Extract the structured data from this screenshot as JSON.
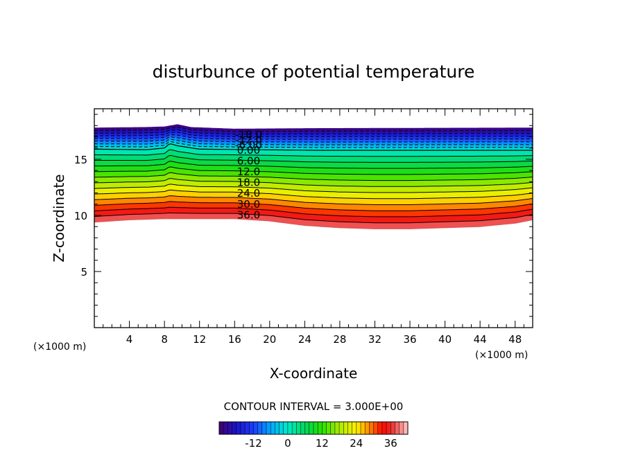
{
  "chart_data": {
    "type": "contour",
    "title": "disturbunce of potential temperature",
    "xlabel": "X-coordinate",
    "ylabel": "Z-coordinate",
    "x_unit_label": "(×1000 m)",
    "y_unit_label": "(×1000 m)",
    "xlim": [
      0,
      50
    ],
    "ylim": [
      0,
      19.5
    ],
    "x_ticks": [
      4,
      8,
      12,
      16,
      20,
      24,
      28,
      32,
      36,
      40,
      44,
      48
    ],
    "y_ticks": [
      5,
      10,
      15
    ],
    "contour_interval_label": "CONTOUR INTERVAL = 3.000E+00",
    "contour_levels": [
      -24,
      -21,
      -18,
      -15,
      -12,
      -9,
      -6,
      -3,
      0,
      3,
      6,
      9,
      12,
      15,
      18,
      21,
      24,
      27,
      30,
      33,
      36,
      39
    ],
    "contour_labels": [
      {
        "text": "-18.0",
        "level": -18
      },
      {
        "text": "-12.0",
        "level": -12
      },
      {
        "text": "-6.00",
        "level": -6
      },
      {
        "text": "0.00",
        "level": 0
      },
      {
        "text": "6.00",
        "level": 6
      },
      {
        "text": "12.0",
        "level": 12
      },
      {
        "text": "18.0",
        "level": 18
      },
      {
        "text": "24.0",
        "level": 24
      },
      {
        "text": "30.0",
        "level": 30
      },
      {
        "text": "36.0",
        "level": 36
      }
    ],
    "colorbar": {
      "min": -24,
      "max": 42,
      "ticks": [
        -12,
        0,
        12,
        24,
        36
      ],
      "tick_labels": [
        "-12",
        "0",
        "12",
        "24",
        "36"
      ]
    },
    "grid": false,
    "negative_contours": "dashed",
    "field_top_profile": [
      [
        0,
        17.8
      ],
      [
        6,
        17.85
      ],
      [
        8,
        17.9
      ],
      [
        9.5,
        18.1
      ],
      [
        11,
        17.85
      ],
      [
        16,
        17.7
      ],
      [
        25,
        17.75
      ],
      [
        50,
        17.8
      ]
    ],
    "zero_contour_profile": [
      [
        0,
        15.9
      ],
      [
        6,
        15.85
      ],
      [
        8,
        16.0
      ],
      [
        8.6,
        16.4
      ],
      [
        9.5,
        16.2
      ],
      [
        12,
        15.9
      ],
      [
        25,
        15.8
      ],
      [
        50,
        15.8
      ]
    ],
    "field_bottom_profile": [
      [
        0,
        9.4
      ],
      [
        4,
        9.6
      ],
      [
        8,
        9.7
      ],
      [
        12,
        9.7
      ],
      [
        16,
        9.7
      ],
      [
        20,
        9.5
      ],
      [
        24,
        9.1
      ],
      [
        28,
        8.9
      ],
      [
        32,
        8.8
      ],
      [
        36,
        8.8
      ],
      [
        40,
        8.9
      ],
      [
        44,
        9.0
      ],
      [
        48,
        9.3
      ],
      [
        50,
        9.6
      ]
    ]
  }
}
